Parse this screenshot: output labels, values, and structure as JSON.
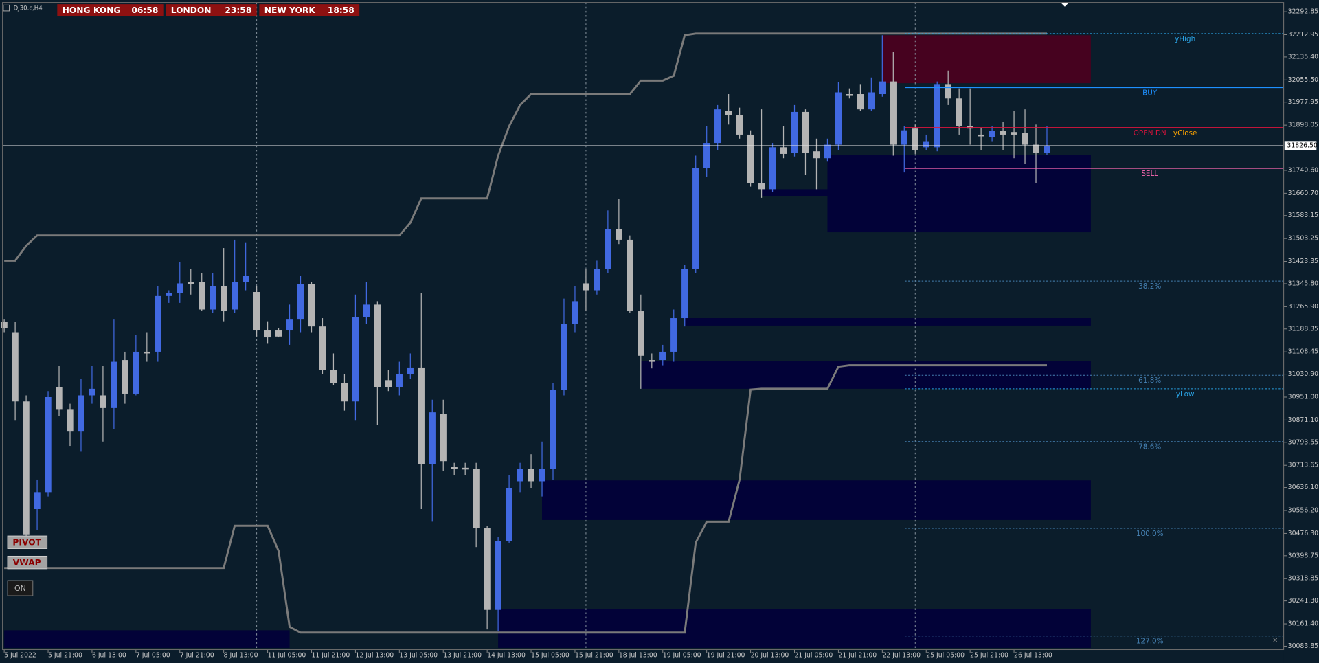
{
  "chart_data": {
    "type": "candlestick",
    "title": "DJ30.c,H4",
    "up_color": "#4169e1",
    "down_color": "#b4b4b4",
    "categories": [
      "5 Jul 2022",
      null,
      null,
      null,
      "5 Jul 21:00",
      null,
      null,
      null,
      "6 Jul 13:00",
      null,
      null,
      null,
      "7 Jul 05:00",
      null,
      null,
      null,
      "7 Jul 21:00",
      null,
      null,
      null,
      "8 Jul 13:00",
      null,
      null,
      null,
      "11 Jul 05:00",
      null,
      null,
      null,
      "11 Jul 21:00",
      null,
      null,
      null,
      "12 Jul 13:00",
      null,
      null,
      null,
      "13 Jul 05:00",
      null,
      null,
      null,
      "13 Jul 21:00",
      null,
      null,
      null,
      "14 Jul 13:00",
      null,
      null,
      null,
      "15 Jul 05:00",
      null,
      null,
      null,
      "15 Jul 21:00",
      null,
      null,
      null,
      "18 Jul 13:00",
      null,
      null,
      null,
      "19 Jul 05:00",
      null,
      null,
      null,
      "19 Jul 21:00",
      null,
      null,
      null,
      "20 Jul 13:00",
      null,
      null,
      null,
      "21 Jul 05:00",
      null,
      null,
      null,
      "21 Jul 21:00",
      null,
      null,
      null,
      "22 Jul 13:00",
      null,
      null,
      null,
      "25 Jul 05:00",
      null,
      null,
      null,
      "25 Jul 21:00",
      null,
      null,
      null,
      "26 Jul 13:00",
      null,
      null,
      null
    ],
    "open": [
      31212,
      31177,
      30936,
      30561,
      30620,
      30986,
      30907,
      30831,
      30957,
      30957,
      30913,
      31080,
      30963,
      31109,
      31109,
      31303,
      31314,
      31352,
      31352,
      31256,
      31338,
      31256,
      31352,
      31317,
      31183,
      31183,
      31183,
      31221,
      31344,
      31197,
      31045,
      31001,
      30936,
      31229,
      31273,
      31010,
      30986,
      31030,
      31054,
      30717,
      30892,
      30708,
      30705,
      30702,
      30494,
      30210,
      30450,
      30658,
      30702,
      30658,
      30702,
      30977,
      31206,
      31347,
      31323,
      31396,
      31537,
      31499,
      31250,
      31080,
      31080,
      31109,
      31226,
      31396,
      31748,
      31836,
      31947,
      31933,
      31865,
      31695,
      31675,
      31821,
      31801,
      31944,
      31807,
      31783,
      31830,
      32006,
      32006,
      31953,
      32006,
      32050,
      31830,
      31886,
      31821,
      31821,
      32041,
      31991,
      31894,
      31865,
      31856,
      31877,
      31874,
      31871,
      31830,
      31801
    ],
    "high": [
      31221,
      31212,
      30957,
      30664,
      30972,
      31059,
      30928,
      31015,
      31059,
      31059,
      31221,
      31109,
      31168,
      31177,
      31338,
      31323,
      31420,
      31396,
      31382,
      31382,
      31470,
      31499,
      31490,
      31338,
      31215,
      31191,
      31273,
      31373,
      31352,
      31226,
      31103,
      31030,
      31308,
      31352,
      31285,
      31045,
      31074,
      31103,
      31314,
      30942,
      30942,
      30722,
      30722,
      30722,
      30503,
      30465,
      30679,
      30722,
      30752,
      30796,
      31001,
      31294,
      31338,
      31396,
      31426,
      31601,
      31640,
      31514,
      31308,
      31103,
      31133,
      31256,
      31411,
      31792,
      31894,
      31968,
      32006,
      31959,
      31880,
      31953,
      31836,
      31894,
      31968,
      31953,
      31851,
      31851,
      32047,
      32026,
      32041,
      32064,
      32211,
      32152,
      31894,
      31900,
      31865,
      32050,
      32088,
      32026,
      32026,
      31889,
      31894,
      31909,
      31947,
      31953,
      31900,
      31894
    ],
    "low": [
      31177,
      30869,
      30459,
      30488,
      30605,
      30884,
      30781,
      30761,
      30928,
      30796,
      30840,
      30928,
      30957,
      31074,
      31074,
      31279,
      31279,
      31308,
      31250,
      31244,
      31215,
      31244,
      31323,
      31162,
      31139,
      31159,
      31133,
      31177,
      31177,
      31030,
      30992,
      30904,
      30869,
      31206,
      30854,
      30972,
      30957,
      31015,
      30561,
      30517,
      30693,
      30679,
      30679,
      30429,
      30142,
      30136,
      30444,
      30620,
      30635,
      30605,
      30664,
      30957,
      31177,
      31250,
      31308,
      31382,
      31484,
      31244,
      30980,
      31051,
      31062,
      31074,
      31197,
      31382,
      31719,
      31812,
      31900,
      31851,
      31684,
      31645,
      31666,
      31783,
      31789,
      31725,
      31675,
      31771,
      31812,
      31991,
      31947,
      31947,
      31997,
      31792,
      31733,
      31798,
      31812,
      31807,
      31968,
      31865,
      31830,
      31812,
      31842,
      31812,
      31783,
      31763,
      31695,
      31795
    ],
    "close": [
      31191,
      30936,
      30473,
      30620,
      30951,
      30907,
      30831,
      30957,
      30980,
      30913,
      31074,
      30963,
      31109,
      31103,
      31303,
      31314,
      31347,
      31344,
      31256,
      31338,
      31250,
      31352,
      31373,
      31183,
      31159,
      31162,
      31221,
      31344,
      31197,
      31045,
      31001,
      30936,
      31229,
      31273,
      30986,
      30986,
      31030,
      31054,
      30717,
      30898,
      30728,
      30702,
      30699,
      30494,
      30210,
      30450,
      30635,
      30702,
      30658,
      30702,
      30977,
      31206,
      31285,
      31323,
      31396,
      31537,
      31499,
      31250,
      31095,
      31074,
      31109,
      31226,
      31396,
      31748,
      31836,
      31953,
      31933,
      31865,
      31695,
      31675,
      31821,
      31798,
      31944,
      31801,
      31783,
      31830,
      32012,
      32000,
      31953,
      32012,
      32050,
      31830,
      31880,
      31812,
      31842,
      32041,
      31991,
      31894,
      31886,
      31859,
      31877,
      31865,
      31865,
      31830,
      31801,
      31827
    ],
    "channels": [
      {
        "color": "#7a7a7a",
        "values": [
          31426,
          31426,
          31478,
          31514,
          31514,
          31514,
          31514,
          31514,
          31514,
          31514,
          31514,
          31514,
          31514,
          31514,
          31514,
          31514,
          31514,
          31514,
          31514,
          31514,
          31514,
          31514,
          31514,
          31514,
          31514,
          31514,
          31514,
          31514,
          31514,
          31514,
          31514,
          31514,
          31514,
          31514,
          31514,
          31514,
          31514,
          31558,
          31643,
          31643,
          31643,
          31643,
          31643,
          31643,
          31643,
          31792,
          31894,
          31968,
          32006,
          32006,
          32006,
          32006,
          32006,
          32006,
          32006,
          32006,
          32006,
          32006,
          32053,
          32053,
          32053,
          32070,
          32211,
          32217,
          32217,
          32217,
          32217,
          32217,
          32217,
          32217,
          32217,
          32217,
          32217,
          32217,
          32217,
          32217,
          32217,
          32217,
          32217,
          32217,
          32217,
          32217,
          32217,
          32217,
          32217,
          32217,
          32217,
          32217,
          32217,
          32217,
          32217,
          32217,
          32217,
          32217,
          32217,
          32217
        ]
      },
      {
        "color": "#7a7a7a",
        "values": [
          30356,
          30356,
          30356,
          30356,
          30356,
          30356,
          30356,
          30356,
          30356,
          30356,
          30356,
          30356,
          30356,
          30356,
          30356,
          30356,
          30356,
          30356,
          30356,
          30356,
          30356,
          30503,
          30503,
          30503,
          30503,
          30415,
          30151,
          30131,
          30131,
          30131,
          30131,
          30131,
          30131,
          30131,
          30131,
          30131,
          30131,
          30131,
          30131,
          30131,
          30131,
          30131,
          30131,
          30131,
          30131,
          30131,
          30131,
          30131,
          30131,
          30131,
          30131,
          30131,
          30131,
          30131,
          30131,
          30131,
          30131,
          30131,
          30131,
          30131,
          30131,
          30131,
          30131,
          30444,
          30517,
          30517,
          30517,
          30664,
          30977,
          30980,
          30980,
          30980,
          30980,
          30980,
          30980,
          30980,
          31057,
          31062,
          31062,
          31062,
          31062,
          31062,
          31062,
          31062,
          31062,
          31062,
          31062,
          31062,
          31062,
          31062,
          31062,
          31062,
          31062,
          31062,
          31062,
          31062
        ]
      }
    ],
    "zones": [
      {
        "color": "#46021f",
        "x": [
          80,
          99
        ],
        "low": 32044,
        "high": 32211
      },
      {
        "color": "#020238",
        "x": [
          75,
          99
        ],
        "low": 31525,
        "high": 31795
      },
      {
        "color": "#020238",
        "x": [
          69,
          75
        ],
        "low": 31651,
        "high": 31675
      },
      {
        "color": "#020238",
        "x": [
          62,
          99
        ],
        "low": 31200,
        "high": 31226
      },
      {
        "color": "#020238",
        "x": [
          58,
          99
        ],
        "low": 30980,
        "high": 31077
      },
      {
        "color": "#020238",
        "x": [
          49,
          99
        ],
        "low": 30523,
        "high": 30661
      },
      {
        "color": "#020238",
        "x": [
          45,
          99
        ],
        "low": 30078,
        "high": 30213
      },
      {
        "color": "#020238",
        "x": [
          0,
          26
        ],
        "low": 30078,
        "high": 30139
      }
    ],
    "separators": [
      23,
      53,
      83
    ],
    "levels": [
      {
        "label": "yHigh",
        "value": 32217,
        "color": "#2aa4e6",
        "style": "dashed"
      },
      {
        "label": "BUY",
        "value": 32029,
        "color": "#1e90ff",
        "style": "solid"
      },
      {
        "label": "OPEN DN",
        "value": 31889,
        "color": "#dc143c",
        "style": "solid"
      },
      {
        "label": "yClose",
        "value": 31889,
        "color": "#ffa500",
        "style": "none"
      },
      {
        "label": "SELL",
        "value": 31748,
        "color": "#ff69b4",
        "style": "solid"
      },
      {
        "label": "38.2%",
        "value": 31355,
        "color": "#4682b4",
        "style": "dashed"
      },
      {
        "label": "61.8%",
        "value": 31027,
        "color": "#4682b4",
        "style": "dashed"
      },
      {
        "label": "yLow",
        "value": 30980,
        "color": "#2aa4e6",
        "style": "dashed"
      },
      {
        "label": "78.6%",
        "value": 30796,
        "color": "#4682b4",
        "style": "dashed"
      },
      {
        "label": "100.0%",
        "value": 30494,
        "color": "#4682b4",
        "style": "dashed"
      },
      {
        "label": "127.0%",
        "value": 30119,
        "color": "#4682b4",
        "style": "dashed"
      }
    ],
    "last_price": {
      "value": 31826.5,
      "label": "31826.50"
    },
    "ylim": [
      30072,
      32325
    ],
    "yticks": [
      32292.85,
      32212.95,
      {
        "value": 32135.4,
        "label": "32135.40"
      },
      {
        "value": 32055.5,
        "label": "32055.50"
      },
      31977.95,
      31898.05,
      {
        "value": 31740.6,
        "label": "31740.60"
      },
      {
        "value": 31660.7,
        "label": "31660.70"
      },
      31583.15,
      31503.25,
      31423.35,
      {
        "value": 31345.8,
        "label": "31345.80"
      },
      {
        "value": 31265.9,
        "label": "31265.90"
      },
      31188.35,
      31108.45,
      {
        "value": 31030.9,
        "label": "31030.90"
      },
      {
        "value": 30951,
        "label": "30951.00"
      },
      {
        "value": 30871.1,
        "label": "30871.10"
      },
      30793.55,
      30713.65,
      {
        "value": 30636.1,
        "label": "30636.10"
      },
      {
        "value": 30556.2,
        "label": "30556.20"
      },
      {
        "value": 30476.3,
        "label": "30476.30"
      },
      30398.75,
      30318.85,
      {
        "value": 30241.3,
        "label": "30241.30"
      },
      {
        "value": 30161.4,
        "label": "30161.40"
      },
      30083.85
    ],
    "grid": false
  },
  "clocks": [
    {
      "city": "HONG KONG",
      "time": "06:58"
    },
    {
      "city": "LONDON",
      "time": "23:58"
    },
    {
      "city": "NEW YORK",
      "time": "18:58"
    }
  ],
  "buttons": [
    "PIVOT",
    "VWAP",
    "ON"
  ]
}
